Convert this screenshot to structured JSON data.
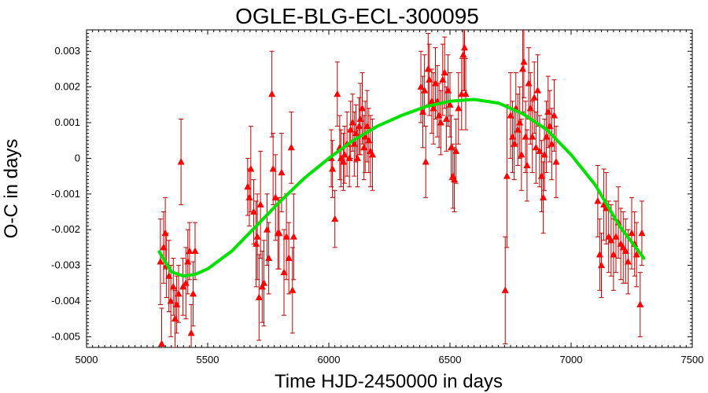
{
  "chart_data": {
    "type": "scatter",
    "title": "OGLE-BLG-ECL-300095",
    "xlabel": "Time HJD-2450000 in days",
    "ylabel": "O-C in days",
    "xlim": [
      5000,
      7500
    ],
    "ylim": [
      -0.0053,
      0.0036
    ],
    "xticks": [
      5000,
      5500,
      6000,
      6500,
      7000,
      7500
    ],
    "yticks": [
      -0.005,
      -0.004,
      -0.003,
      -0.002,
      -0.001,
      0,
      0.001,
      0.002,
      0.003
    ],
    "ytick_labels": [
      "-0.005",
      "-0.004",
      "-0.003",
      "-0.002",
      "-0.001",
      "0",
      "0.001",
      "0.002",
      "0.003"
    ],
    "grid": false,
    "colors": {
      "points": "#ff0000",
      "errorbars": "#c00000",
      "fit": "#00e000"
    },
    "series": [
      {
        "marker": "triangle",
        "points": [
          {
            "x": 5305,
            "y": -0.0029,
            "e": 0.0012
          },
          {
            "x": 5310,
            "y": -0.0052,
            "e": 0.001
          },
          {
            "x": 5318,
            "y": -0.0025,
            "e": 0.001
          },
          {
            "x": 5325,
            "y": -0.0021,
            "e": 0.001
          },
          {
            "x": 5330,
            "y": -0.003,
            "e": 0.0009
          },
          {
            "x": 5340,
            "y": -0.0033,
            "e": 0.001
          },
          {
            "x": 5348,
            "y": -0.004,
            "e": 0.001
          },
          {
            "x": 5358,
            "y": -0.0036,
            "e": 0.0008
          },
          {
            "x": 5365,
            "y": -0.0045,
            "e": 0.0008
          },
          {
            "x": 5372,
            "y": -0.0041,
            "e": 0.0008
          },
          {
            "x": 5380,
            "y": -0.0038,
            "e": 0.0008
          },
          {
            "x": 5390,
            "y": -0.0001,
            "e": 0.0012
          },
          {
            "x": 5398,
            "y": -0.0036,
            "e": 0.0008
          },
          {
            "x": 5410,
            "y": -0.0035,
            "e": 0.001
          },
          {
            "x": 5418,
            "y": -0.0029,
            "e": 0.0009
          },
          {
            "x": 5425,
            "y": -0.0026,
            "e": 0.0008
          },
          {
            "x": 5432,
            "y": -0.0049,
            "e": 0.0008
          },
          {
            "x": 5440,
            "y": -0.0038,
            "e": 0.0009
          },
          {
            "x": 5448,
            "y": -0.0026,
            "e": 0.0008
          },
          {
            "x": 5665,
            "y": -0.0008,
            "e": 0.0008
          },
          {
            "x": 5672,
            "y": -0.0011,
            "e": 0.0008
          },
          {
            "x": 5678,
            "y": -0.0003,
            "e": 0.0012
          },
          {
            "x": 5690,
            "y": -0.0015,
            "e": 0.0009
          },
          {
            "x": 5700,
            "y": -0.0024,
            "e": 0.0012
          },
          {
            "x": 5705,
            "y": -0.0022,
            "e": 0.0012
          },
          {
            "x": 5712,
            "y": -0.0039,
            "e": 0.0012
          },
          {
            "x": 5718,
            "y": -0.0013,
            "e": 0.0015
          },
          {
            "x": 5725,
            "y": -0.0036,
            "e": 0.001
          },
          {
            "x": 5732,
            "y": -0.0035,
            "e": 0.0012
          },
          {
            "x": 5745,
            "y": -0.002,
            "e": 0.001
          },
          {
            "x": 5752,
            "y": -0.0028,
            "e": 0.001
          },
          {
            "x": 5765,
            "y": 0.0018,
            "e": 0.0012
          },
          {
            "x": 5770,
            "y": -0.0003,
            "e": 0.001
          },
          {
            "x": 5780,
            "y": -0.0011,
            "e": 0.0012
          },
          {
            "x": 5790,
            "y": -0.0021,
            "e": 0.001
          },
          {
            "x": 5795,
            "y": -0.0021,
            "e": 0.001
          },
          {
            "x": 5805,
            "y": -0.0004,
            "e": 0.0011
          },
          {
            "x": 5815,
            "y": -0.0032,
            "e": 0.0012
          },
          {
            "x": 5825,
            "y": -0.0022,
            "e": 0.0012
          },
          {
            "x": 5835,
            "y": -0.0028,
            "e": 0.001
          },
          {
            "x": 5845,
            "y": 0.0003,
            "e": 0.001
          },
          {
            "x": 5850,
            "y": -0.0037,
            "e": 0.0012
          },
          {
            "x": 5855,
            "y": -0.0022,
            "e": 0.0012
          },
          {
            "x": 6010,
            "y": 0.0,
            "e": 0.0008
          },
          {
            "x": 6015,
            "y": -0.0003,
            "e": 0.0008
          },
          {
            "x": 6025,
            "y": -0.0017,
            "e": 0.0008
          },
          {
            "x": 6035,
            "y": 0.0018,
            "e": 0.0009
          },
          {
            "x": 6045,
            "y": 0.0003,
            "e": 0.0009
          },
          {
            "x": 6050,
            "y": 0.0,
            "e": 0.0008
          },
          {
            "x": 6060,
            "y": -0.0001,
            "e": 0.0008
          },
          {
            "x": 6065,
            "y": 0.0001,
            "e": 0.0008
          },
          {
            "x": 6075,
            "y": 0.0004,
            "e": 0.0009
          },
          {
            "x": 6085,
            "y": 0.0,
            "e": 0.0008
          },
          {
            "x": 6090,
            "y": 0.0008,
            "e": 0.0008
          },
          {
            "x": 6098,
            "y": 0.001,
            "e": 0.0008
          },
          {
            "x": 6105,
            "y": 0.0004,
            "e": 0.0009
          },
          {
            "x": 6112,
            "y": 0.0007,
            "e": 0.0008
          },
          {
            "x": 6118,
            "y": 0.0,
            "e": 0.0008
          },
          {
            "x": 6125,
            "y": 0.0009,
            "e": 0.0008
          },
          {
            "x": 6130,
            "y": 0.0011,
            "e": 0.001
          },
          {
            "x": 6138,
            "y": 0.0014,
            "e": 0.001
          },
          {
            "x": 6145,
            "y": 0.0003,
            "e": 0.0009
          },
          {
            "x": 6150,
            "y": 0.0006,
            "e": 0.001
          },
          {
            "x": 6158,
            "y": 0.0009,
            "e": 0.001
          },
          {
            "x": 6165,
            "y": 0.0005,
            "e": 0.0009
          },
          {
            "x": 6172,
            "y": 0.0002,
            "e": 0.001
          },
          {
            "x": 6180,
            "y": 0.0001,
            "e": 0.001
          },
          {
            "x": 6380,
            "y": 0.002,
            "e": 0.001
          },
          {
            "x": 6388,
            "y": 0.0013,
            "e": 0.001
          },
          {
            "x": 6395,
            "y": 0.0019,
            "e": 0.001
          },
          {
            "x": 6400,
            "y": -0.0001,
            "e": 0.001
          },
          {
            "x": 6410,
            "y": 0.0025,
            "e": 0.001
          },
          {
            "x": 6415,
            "y": 0.0022,
            "e": 0.001
          },
          {
            "x": 6425,
            "y": 0.0016,
            "e": 0.0009
          },
          {
            "x": 6432,
            "y": 0.0014,
            "e": 0.001
          },
          {
            "x": 6440,
            "y": 0.0021,
            "e": 0.001
          },
          {
            "x": 6448,
            "y": 0.0016,
            "e": 0.001
          },
          {
            "x": 6455,
            "y": 0.0012,
            "e": 0.0009
          },
          {
            "x": 6462,
            "y": 0.001,
            "e": 0.0009
          },
          {
            "x": 6470,
            "y": 0.0022,
            "e": 0.001
          },
          {
            "x": 6478,
            "y": 0.0024,
            "e": 0.001
          },
          {
            "x": 6485,
            "y": 0.0011,
            "e": 0.0009
          },
          {
            "x": 6492,
            "y": 0.0019,
            "e": 0.001
          },
          {
            "x": 6500,
            "y": 0.0015,
            "e": 0.0009
          },
          {
            "x": 6505,
            "y": 0.0003,
            "e": 0.0009
          },
          {
            "x": 6512,
            "y": -0.0005,
            "e": 0.0009
          },
          {
            "x": 6518,
            "y": -0.0006,
            "e": 0.0009
          },
          {
            "x": 6525,
            "y": 0.0002,
            "e": 0.0009
          },
          {
            "x": 6535,
            "y": 0.0014,
            "e": 0.001
          },
          {
            "x": 6548,
            "y": 0.0018,
            "e": 0.001
          },
          {
            "x": 6555,
            "y": 0.0029,
            "e": 0.001
          },
          {
            "x": 6560,
            "y": 0.0031,
            "e": 0.0012
          },
          {
            "x": 6565,
            "y": 0.0018,
            "e": 0.001
          },
          {
            "x": 6728,
            "y": -0.0037,
            "e": 0.0015
          },
          {
            "x": 6735,
            "y": -0.0005,
            "e": 0.002
          },
          {
            "x": 6750,
            "y": 0.0012,
            "e": 0.0012
          },
          {
            "x": 6758,
            "y": 0.0006,
            "e": 0.001
          },
          {
            "x": 6765,
            "y": 0.0004,
            "e": 0.001
          },
          {
            "x": 6772,
            "y": 0.0014,
            "e": 0.001
          },
          {
            "x": 6780,
            "y": 0.0008,
            "e": 0.001
          },
          {
            "x": 6788,
            "y": 0.001,
            "e": 0.001
          },
          {
            "x": 6795,
            "y": 0.0001,
            "e": 0.001
          },
          {
            "x": 6800,
            "y": 0.0025,
            "e": 0.0012
          },
          {
            "x": 6805,
            "y": 0.0027,
            "e": 0.001
          },
          {
            "x": 6812,
            "y": 0.0006,
            "e": 0.001
          },
          {
            "x": 6818,
            "y": -0.0002,
            "e": 0.001
          },
          {
            "x": 6825,
            "y": 0.0021,
            "e": 0.001
          },
          {
            "x": 6832,
            "y": 0.0014,
            "e": 0.001
          },
          {
            "x": 6840,
            "y": 0.0006,
            "e": 0.001
          },
          {
            "x": 6848,
            "y": 0.0017,
            "e": 0.001
          },
          {
            "x": 6855,
            "y": 0.0003,
            "e": 0.001
          },
          {
            "x": 6862,
            "y": 0.0019,
            "e": 0.001
          },
          {
            "x": 6870,
            "y": 0.0002,
            "e": 0.001
          },
          {
            "x": 6878,
            "y": -0.0005,
            "e": 0.001
          },
          {
            "x": 6885,
            "y": -0.0011,
            "e": 0.001
          },
          {
            "x": 6890,
            "y": 0.0001,
            "e": 0.001
          },
          {
            "x": 6898,
            "y": 0.0006,
            "e": 0.001
          },
          {
            "x": 6905,
            "y": 0.0013,
            "e": 0.001
          },
          {
            "x": 6912,
            "y": 0.0009,
            "e": 0.001
          },
          {
            "x": 6920,
            "y": 0.0004,
            "e": 0.001
          },
          {
            "x": 6930,
            "y": 0.0012,
            "e": 0.001
          },
          {
            "x": 6938,
            "y": -0.0001,
            "e": 0.001
          },
          {
            "x": 7110,
            "y": -0.0012,
            "e": 0.001
          },
          {
            "x": 7118,
            "y": -0.0027,
            "e": 0.001
          },
          {
            "x": 7125,
            "y": -0.003,
            "e": 0.0009
          },
          {
            "x": 7135,
            "y": -0.0013,
            "e": 0.001
          },
          {
            "x": 7145,
            "y": -0.0014,
            "e": 0.001
          },
          {
            "x": 7155,
            "y": -0.0022,
            "e": 0.001
          },
          {
            "x": 7165,
            "y": -0.0023,
            "e": 0.001
          },
          {
            "x": 7175,
            "y": -0.0027,
            "e": 0.001
          },
          {
            "x": 7185,
            "y": -0.0022,
            "e": 0.001
          },
          {
            "x": 7195,
            "y": -0.0018,
            "e": 0.001
          },
          {
            "x": 7205,
            "y": -0.0024,
            "e": 0.001
          },
          {
            "x": 7215,
            "y": -0.0025,
            "e": 0.001
          },
          {
            "x": 7225,
            "y": -0.0026,
            "e": 0.0009
          },
          {
            "x": 7235,
            "y": -0.0029,
            "e": 0.0009
          },
          {
            "x": 7250,
            "y": -0.0021,
            "e": 0.001
          },
          {
            "x": 7262,
            "y": -0.0024,
            "e": 0.0009
          },
          {
            "x": 7270,
            "y": -0.0027,
            "e": 0.0009
          },
          {
            "x": 7285,
            "y": -0.0041,
            "e": 0.0009
          },
          {
            "x": 7292,
            "y": -0.0021,
            "e": 0.0009
          }
        ]
      },
      {
        "type": "line",
        "x": [
          5300,
          5350,
          5400,
          5450,
          5500,
          5600,
          5700,
          5800,
          5900,
          6000,
          6100,
          6200,
          6300,
          6400,
          6500,
          6600,
          6700,
          6800,
          6900,
          7000,
          7100,
          7200,
          7300
        ],
        "y": [
          -0.00262,
          -0.00318,
          -0.0033,
          -0.00325,
          -0.0031,
          -0.0026,
          -0.0019,
          -0.0012,
          -0.00055,
          0.0,
          0.0005,
          0.0009,
          0.0012,
          0.00145,
          0.0016,
          0.00165,
          0.00155,
          0.00125,
          0.0008,
          0.0001,
          -0.00075,
          -0.0019,
          -0.0028
        ]
      }
    ]
  }
}
